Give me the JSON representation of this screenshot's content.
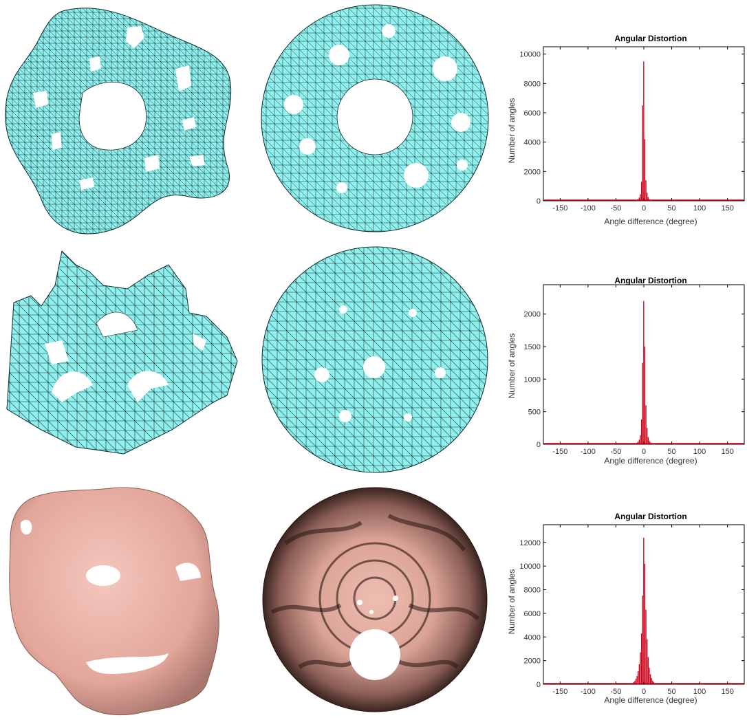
{
  "colors": {
    "mesh_fill": "#8ff0ee",
    "mesh_line": "#0d2a2a",
    "skin_fill": "#e9b0a6",
    "skin_dark": "#2a1612",
    "bar": "#cc0018"
  },
  "chart_data": [
    {
      "type": "bar",
      "title": "Angular Distortion",
      "xlabel": "Angle difference (degree)",
      "ylabel": "Number of angles",
      "xlim": [
        -180,
        180
      ],
      "ylim": [
        0,
        10500
      ],
      "xticks": [
        "-150",
        "-100",
        "-50",
        "0",
        "50",
        "100",
        "150"
      ],
      "yticks": [
        "0",
        "2000",
        "4000",
        "6000",
        "8000",
        "10000"
      ],
      "x": [
        -14,
        -12,
        -10,
        -8,
        -6,
        -4,
        -2,
        0,
        2,
        4,
        6,
        8,
        10,
        12,
        14
      ],
      "values": [
        30,
        60,
        120,
        220,
        450,
        1300,
        6500,
        9500,
        4200,
        1400,
        550,
        250,
        120,
        60,
        30
      ]
    },
    {
      "type": "bar",
      "title": "Angular Distortion",
      "xlabel": "Angle difference (degree)",
      "ylabel": "Number of angles",
      "xlim": [
        -180,
        180
      ],
      "ylim": [
        0,
        2450
      ],
      "xticks": [
        "-150",
        "-100",
        "-50",
        "0",
        "50",
        "100",
        "150"
      ],
      "yticks": [
        "0",
        "500",
        "1000",
        "1500",
        "2000"
      ],
      "x": [
        -14,
        -12,
        -10,
        -8,
        -6,
        -4,
        -2,
        0,
        2,
        4,
        6,
        8,
        10,
        12,
        14
      ],
      "values": [
        15,
        25,
        40,
        70,
        140,
        380,
        1250,
        2200,
        1500,
        600,
        250,
        110,
        55,
        30,
        15
      ]
    },
    {
      "type": "bar",
      "title": "Angular Distortion",
      "xlabel": "Angle difference (degree)",
      "ylabel": "Number of angles",
      "xlim": [
        -180,
        180
      ],
      "ylim": [
        0,
        13500
      ],
      "xticks": [
        "-150",
        "-100",
        "-50",
        "0",
        "50",
        "100",
        "150"
      ],
      "yticks": [
        "0",
        "2000",
        "4000",
        "6000",
        "8000",
        "10000",
        "12000"
      ],
      "x": [
        -22,
        -20,
        -18,
        -16,
        -14,
        -12,
        -10,
        -8,
        -6,
        -4,
        -2,
        0,
        2,
        4,
        6,
        8,
        10,
        12,
        14,
        16,
        18,
        20,
        22
      ],
      "values": [
        60,
        110,
        180,
        280,
        450,
        700,
        1100,
        1700,
        2700,
        4300,
        7500,
        12400,
        10200,
        6300,
        3800,
        2300,
        1400,
        850,
        520,
        320,
        190,
        110,
        60
      ]
    }
  ]
}
